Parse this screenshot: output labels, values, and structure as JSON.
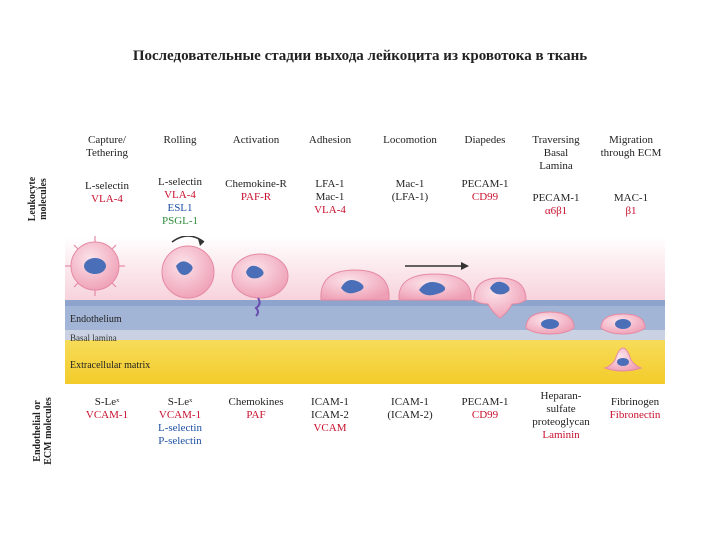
{
  "title": "Последовательные стадии выхода лейкоцита из кровотока в ткань",
  "side_labels": {
    "top": [
      "Leukocyte",
      "molecules"
    ],
    "bottom": [
      "Endothelial or",
      "ECM molecules"
    ]
  },
  "layers": {
    "endothelium": "Endothelium",
    "basal_lamina": "Basal lamina",
    "ecm": "Extracellular matrix"
  },
  "colors": {
    "black": "#222222",
    "red": "#c8102e",
    "blue": "#1e4fa3",
    "green": "#2e8b3a",
    "lumen": "#f9dde4",
    "endothelium": "#9fb2d4",
    "matrix": "#f5d43a",
    "cell": "#f4b6c8",
    "nucleus": "#4a6fb8"
  },
  "stages": [
    {
      "name": [
        "Capture/",
        "Tethering"
      ],
      "leukocyte": [
        {
          "text": "L-selectin",
          "color": "black"
        },
        {
          "text": "VLA-4",
          "color": "red"
        }
      ],
      "endothelial": [
        {
          "text": "S-Leˣ",
          "color": "black"
        },
        {
          "text": "VCAM-1",
          "color": "red"
        }
      ]
    },
    {
      "name": [
        "Rolling"
      ],
      "leukocyte": [
        {
          "text": "L-selectin",
          "color": "black"
        },
        {
          "text": "VLA-4",
          "color": "red"
        },
        {
          "text": "ESL1",
          "color": "blue"
        },
        {
          "text": "PSGL-1",
          "color": "green"
        }
      ],
      "endothelial": [
        {
          "text": "S-Leˣ",
          "color": "black"
        },
        {
          "text": "VCAM-1",
          "color": "red"
        },
        {
          "text": "L-selectin",
          "color": "blue"
        },
        {
          "text": "P-selectin",
          "color": "blue"
        }
      ]
    },
    {
      "name": [
        "Activation"
      ],
      "leukocyte": [
        {
          "text": "Chemokine-R",
          "color": "black"
        },
        {
          "text": "PAF-R",
          "color": "red"
        }
      ],
      "endothelial": [
        {
          "text": "Chemokines",
          "color": "black"
        },
        {
          "text": "PAF",
          "color": "red"
        }
      ]
    },
    {
      "name": [
        "Adhesion"
      ],
      "leukocyte": [
        {
          "text": "LFA-1",
          "color": "black"
        },
        {
          "text": "Mac-1",
          "color": "black"
        },
        {
          "text": "VLA-4",
          "color": "red"
        }
      ],
      "endothelial": [
        {
          "text": "ICAM-1",
          "color": "black"
        },
        {
          "text": "ICAM-2",
          "color": "black"
        },
        {
          "text": "VCAM",
          "color": "red"
        }
      ]
    },
    {
      "name": [
        "Locomotion"
      ],
      "leukocyte": [
        {
          "text": "Mac-1",
          "color": "black"
        },
        {
          "text": "(LFA-1)",
          "color": "black"
        }
      ],
      "endothelial": [
        {
          "text": "ICAM-1",
          "color": "black"
        },
        {
          "text": "(ICAM-2)",
          "color": "black"
        }
      ]
    },
    {
      "name": [
        "Diapedes"
      ],
      "leukocyte": [
        {
          "text": "PECAM-1",
          "color": "black"
        },
        {
          "text": "CD99",
          "color": "red"
        }
      ],
      "endothelial": [
        {
          "text": "PECAM-1",
          "color": "black"
        },
        {
          "text": "CD99",
          "color": "red"
        }
      ]
    },
    {
      "name": [
        "Traversing",
        "Basal",
        "Lamina"
      ],
      "leukocyte": [
        {
          "text": "PECAM-1",
          "color": "black"
        },
        {
          "text": "α6β1",
          "color": "red"
        }
      ],
      "endothelial": [
        {
          "text": "Heparan-",
          "color": "black"
        },
        {
          "text": "sulfate",
          "color": "black"
        },
        {
          "text": "proteoglycan",
          "color": "black"
        },
        {
          "text": "Laminin",
          "color": "red"
        }
      ]
    },
    {
      "name": [
        "Migration",
        "through ECM"
      ],
      "leukocyte": [
        {
          "text": "MAC-1",
          "color": "black"
        },
        {
          "text": "β1",
          "color": "red"
        }
      ],
      "endothelial": [
        {
          "text": "Fibrinogen",
          "color": "black"
        },
        {
          "text": "Fibronectin",
          "color": "red"
        }
      ]
    }
  ]
}
